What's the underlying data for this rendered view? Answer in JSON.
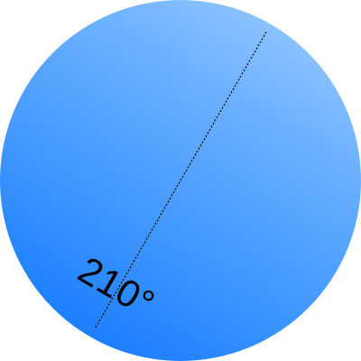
{
  "dial": {
    "angle_deg": 210,
    "angle_label": "210°",
    "colors": {
      "light": "#a4d0ff",
      "dark": "#0a73ff",
      "indicator": "#000000",
      "text": "#000000"
    },
    "icon": "angle-indicator-line"
  }
}
